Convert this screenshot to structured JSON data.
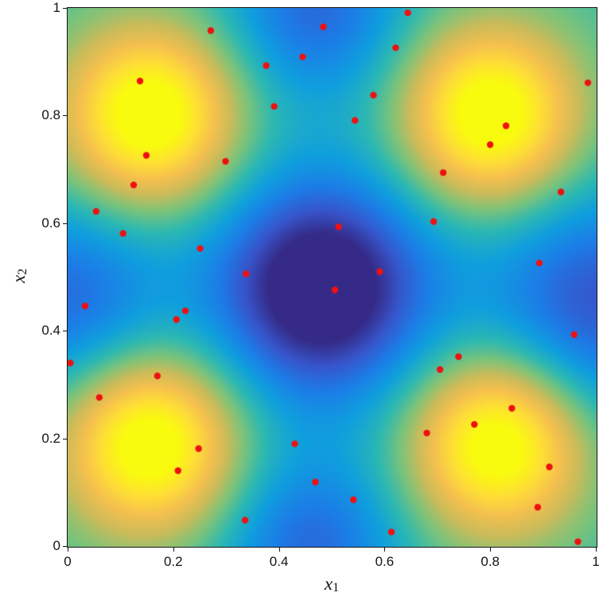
{
  "chart_data": {
    "type": "heatmap",
    "title": "",
    "xlabel_base": "x",
    "xlabel_sub": "1",
    "ylabel_base": "x",
    "ylabel_sub": "2",
    "xlim": [
      0,
      1
    ],
    "ylim": [
      0,
      1
    ],
    "x_tick_values": [
      0,
      0.2,
      0.4,
      0.6,
      0.8,
      1
    ],
    "x_tick_labels": [
      "0",
      "0.2",
      "0.4",
      "0.6",
      "0.8",
      "1"
    ],
    "y_tick_values": [
      0,
      0.2,
      0.4,
      0.6,
      0.8,
      1
    ],
    "y_tick_labels": [
      "0",
      "0.2",
      "0.4",
      "0.6",
      "0.8",
      "1"
    ],
    "grid": false,
    "legend": false,
    "colormap": "parula",
    "colormap_stops": [
      [
        0.0,
        "#352a87"
      ],
      [
        0.111,
        "#3656cc"
      ],
      [
        0.222,
        "#1c7de7"
      ],
      [
        0.333,
        "#0f9fdd"
      ],
      [
        0.444,
        "#2cb8b2"
      ],
      [
        0.556,
        "#7ac37b"
      ],
      [
        0.667,
        "#cabb5a"
      ],
      [
        0.778,
        "#f5c04e"
      ],
      [
        0.889,
        "#fede36"
      ],
      [
        1.0,
        "#f9fb0e"
      ]
    ],
    "surface": {
      "model": "gaussian-mixture",
      "description": "Four yellow peaks near the quadrant centers, deep dark-blue valley at the center, blue valleys at the edge midpoints, teal background elsewhere",
      "baseline": 0.47,
      "components": [
        {
          "cx": 0.155,
          "cy": 0.8,
          "sigma": 0.115,
          "amp": 0.62
        },
        {
          "cx": 0.8,
          "cy": 0.8,
          "sigma": 0.115,
          "amp": 0.62
        },
        {
          "cx": 0.155,
          "cy": 0.19,
          "sigma": 0.115,
          "amp": 0.62
        },
        {
          "cx": 0.815,
          "cy": 0.19,
          "sigma": 0.115,
          "amp": 0.62
        },
        {
          "cx": 0.48,
          "cy": 0.48,
          "sigma": 0.145,
          "amp": -0.6
        },
        {
          "cx": 0.0,
          "cy": 0.46,
          "sigma": 0.13,
          "amp": -0.3
        },
        {
          "cx": 1.0,
          "cy": 0.45,
          "sigma": 0.15,
          "amp": -0.36
        },
        {
          "cx": 0.47,
          "cy": 1.0,
          "sigma": 0.12,
          "amp": -0.3
        },
        {
          "cx": 0.46,
          "cy": 0.0,
          "sigma": 0.12,
          "amp": -0.3
        }
      ]
    },
    "scatter": {
      "name": "sample-points",
      "marker": "filled-circle",
      "color": "#ee1111",
      "radius_px": 4.2,
      "points": [
        [
          0.644,
          0.991
        ],
        [
          0.484,
          0.965
        ],
        [
          0.271,
          0.958
        ],
        [
          0.621,
          0.926
        ],
        [
          0.445,
          0.909
        ],
        [
          0.376,
          0.893
        ],
        [
          0.137,
          0.864
        ],
        [
          0.985,
          0.861
        ],
        [
          0.579,
          0.838
        ],
        [
          0.391,
          0.817
        ],
        [
          0.544,
          0.791
        ],
        [
          0.83,
          0.781
        ],
        [
          0.8,
          0.746
        ],
        [
          0.149,
          0.726
        ],
        [
          0.299,
          0.715
        ],
        [
          0.711,
          0.694
        ],
        [
          0.125,
          0.671
        ],
        [
          0.934,
          0.658
        ],
        [
          0.054,
          0.622
        ],
        [
          0.693,
          0.603
        ],
        [
          0.513,
          0.593
        ],
        [
          0.105,
          0.581
        ],
        [
          0.251,
          0.553
        ],
        [
          0.893,
          0.526
        ],
        [
          0.591,
          0.51
        ],
        [
          0.338,
          0.506
        ],
        [
          0.506,
          0.476
        ],
        [
          0.033,
          0.446
        ],
        [
          0.223,
          0.437
        ],
        [
          0.206,
          0.421
        ],
        [
          0.959,
          0.393
        ],
        [
          0.74,
          0.352
        ],
        [
          0.705,
          0.328
        ],
        [
          0.005,
          0.34
        ],
        [
          0.17,
          0.316
        ],
        [
          0.06,
          0.276
        ],
        [
          0.68,
          0.21
        ],
        [
          0.77,
          0.226
        ],
        [
          0.841,
          0.256
        ],
        [
          0.248,
          0.181
        ],
        [
          0.43,
          0.19
        ],
        [
          0.209,
          0.14
        ],
        [
          0.912,
          0.147
        ],
        [
          0.469,
          0.119
        ],
        [
          0.541,
          0.086
        ],
        [
          0.89,
          0.072
        ],
        [
          0.336,
          0.048
        ],
        [
          0.613,
          0.026
        ],
        [
          0.966,
          0.008
        ]
      ]
    }
  }
}
